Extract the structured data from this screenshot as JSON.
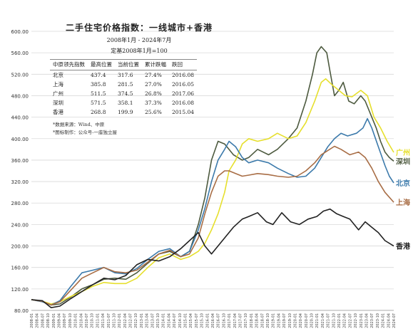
{
  "panel": {
    "title": "二手住宅价格指数：一线城市+香港",
    "period": "2008年1月 - 2024年7月",
    "base": "定基2008年1月=100",
    "headers": [
      "中原领先指数",
      "最高位置",
      "当前位置",
      "累计跌幅",
      "跌回"
    ],
    "rows": [
      [
        "北京",
        "437.4",
        "317.6",
        "27.4%",
        "2016.08"
      ],
      [
        "上海",
        "385.8",
        "281.5",
        "27.0%",
        "2016.05"
      ],
      [
        "广州",
        "511.5",
        "374.5",
        "26.8%",
        "2017.06"
      ],
      [
        "深圳",
        "571.5",
        "358.1",
        "37.3%",
        "2016.08"
      ],
      [
        "香港",
        "268.8",
        "199.9",
        "25.6%",
        "2015.04"
      ]
    ],
    "source": "*数据来源：Wind、中原",
    "credit": "*图标制作：公众号-一座独立屋"
  },
  "chart_data": {
    "type": "line",
    "ylim": [
      80,
      600
    ],
    "yticks": [
      "80.00",
      "120.00",
      "160.00",
      "200.00",
      "240.00",
      "280.00",
      "320.00",
      "360.00",
      "400.00",
      "440.00",
      "480.00",
      "520.00",
      "560.00",
      "600.00"
    ],
    "xlim": [
      2008.0,
      2024.5
    ],
    "x_tick_note": "monthly-quarterly date labels 2008-01 … 2024-07, rotated",
    "series": [
      {
        "name": "深圳",
        "color": "#4d5a3f",
        "points": [
          [
            2008.0,
            100
          ],
          [
            2008.5,
            96
          ],
          [
            2008.9,
            90
          ],
          [
            2009.3,
            92
          ],
          [
            2009.8,
            105
          ],
          [
            2010.3,
            120
          ],
          [
            2010.8,
            128
          ],
          [
            2011.3,
            138
          ],
          [
            2011.8,
            140
          ],
          [
            2012.3,
            138
          ],
          [
            2012.8,
            150
          ],
          [
            2013.3,
            168
          ],
          [
            2013.8,
            185
          ],
          [
            2014.3,
            190
          ],
          [
            2014.8,
            180
          ],
          [
            2015.2,
            190
          ],
          [
            2015.6,
            240
          ],
          [
            2015.9,
            290
          ],
          [
            2016.2,
            360
          ],
          [
            2016.5,
            395
          ],
          [
            2016.8,
            390
          ],
          [
            2017.2,
            370
          ],
          [
            2017.6,
            360
          ],
          [
            2017.9,
            365
          ],
          [
            2018.3,
            380
          ],
          [
            2018.8,
            370
          ],
          [
            2019.2,
            380
          ],
          [
            2019.7,
            400
          ],
          [
            2020.1,
            420
          ],
          [
            2020.5,
            470
          ],
          [
            2020.8,
            520
          ],
          [
            2021.0,
            560
          ],
          [
            2021.2,
            571.5
          ],
          [
            2021.45,
            560
          ],
          [
            2021.6,
            525
          ],
          [
            2021.8,
            480
          ],
          [
            2022.0,
            490
          ],
          [
            2022.2,
            505
          ],
          [
            2022.45,
            470
          ],
          [
            2022.7,
            465
          ],
          [
            2023.0,
            480
          ],
          [
            2023.2,
            470
          ],
          [
            2023.5,
            440
          ],
          [
            2023.7,
            420
          ],
          [
            2023.9,
            395
          ],
          [
            2024.1,
            375
          ],
          [
            2024.3,
            365
          ],
          [
            2024.5,
            358.1
          ]
        ]
      },
      {
        "name": "广州",
        "color": "#e6df2c",
        "points": [
          [
            2008.0,
            100
          ],
          [
            2008.5,
            97
          ],
          [
            2008.9,
            92
          ],
          [
            2009.3,
            96
          ],
          [
            2009.8,
            106
          ],
          [
            2010.3,
            115
          ],
          [
            2010.8,
            125
          ],
          [
            2011.3,
            132
          ],
          [
            2011.8,
            130
          ],
          [
            2012.3,
            130
          ],
          [
            2012.8,
            140
          ],
          [
            2013.3,
            160
          ],
          [
            2013.8,
            178
          ],
          [
            2014.3,
            185
          ],
          [
            2014.8,
            175
          ],
          [
            2015.2,
            180
          ],
          [
            2015.6,
            190
          ],
          [
            2015.9,
            205
          ],
          [
            2016.2,
            230
          ],
          [
            2016.5,
            260
          ],
          [
            2016.8,
            300
          ],
          [
            2017.0,
            340
          ],
          [
            2017.3,
            360
          ],
          [
            2017.6,
            390
          ],
          [
            2017.9,
            400
          ],
          [
            2018.3,
            395
          ],
          [
            2018.8,
            400
          ],
          [
            2019.2,
            410
          ],
          [
            2019.7,
            400
          ],
          [
            2020.1,
            405
          ],
          [
            2020.5,
            430
          ],
          [
            2020.9,
            470
          ],
          [
            2021.2,
            505
          ],
          [
            2021.4,
            511.5
          ],
          [
            2021.7,
            500
          ],
          [
            2022.0,
            490
          ],
          [
            2022.3,
            480
          ],
          [
            2022.6,
            478
          ],
          [
            2023.0,
            490
          ],
          [
            2023.3,
            480
          ],
          [
            2023.6,
            440
          ],
          [
            2023.9,
            420
          ],
          [
            2024.2,
            395
          ],
          [
            2024.5,
            374.5
          ]
        ]
      },
      {
        "name": "北京",
        "color": "#3c7aab",
        "points": [
          [
            2008.0,
            100
          ],
          [
            2008.5,
            96
          ],
          [
            2008.9,
            90
          ],
          [
            2009.3,
            98
          ],
          [
            2009.8,
            125
          ],
          [
            2010.3,
            150
          ],
          [
            2010.8,
            155
          ],
          [
            2011.3,
            160
          ],
          [
            2011.8,
            150
          ],
          [
            2012.3,
            148
          ],
          [
            2012.8,
            158
          ],
          [
            2013.3,
            175
          ],
          [
            2013.8,
            190
          ],
          [
            2014.3,
            195
          ],
          [
            2014.8,
            180
          ],
          [
            2015.2,
            190
          ],
          [
            2015.6,
            230
          ],
          [
            2015.9,
            270
          ],
          [
            2016.2,
            320
          ],
          [
            2016.5,
            360
          ],
          [
            2016.8,
            380
          ],
          [
            2017.0,
            395
          ],
          [
            2017.3,
            385
          ],
          [
            2017.6,
            365
          ],
          [
            2017.9,
            355
          ],
          [
            2018.3,
            360
          ],
          [
            2018.8,
            355
          ],
          [
            2019.2,
            345
          ],
          [
            2019.7,
            335
          ],
          [
            2020.1,
            328
          ],
          [
            2020.5,
            330
          ],
          [
            2020.9,
            345
          ],
          [
            2021.2,
            365
          ],
          [
            2021.5,
            385
          ],
          [
            2021.8,
            400
          ],
          [
            2022.1,
            410
          ],
          [
            2022.4,
            405
          ],
          [
            2022.8,
            410
          ],
          [
            2023.1,
            420
          ],
          [
            2023.3,
            437.4
          ],
          [
            2023.5,
            420
          ],
          [
            2023.8,
            385
          ],
          [
            2024.1,
            350
          ],
          [
            2024.3,
            330
          ],
          [
            2024.5,
            317.6
          ]
        ]
      },
      {
        "name": "上海",
        "color": "#a86d45",
        "points": [
          [
            2008.0,
            100
          ],
          [
            2008.5,
            97
          ],
          [
            2008.9,
            90
          ],
          [
            2009.3,
            96
          ],
          [
            2009.8,
            118
          ],
          [
            2010.3,
            140
          ],
          [
            2010.8,
            150
          ],
          [
            2011.3,
            160
          ],
          [
            2011.8,
            152
          ],
          [
            2012.3,
            150
          ],
          [
            2012.8,
            155
          ],
          [
            2013.3,
            170
          ],
          [
            2013.8,
            185
          ],
          [
            2014.3,
            192
          ],
          [
            2014.8,
            180
          ],
          [
            2015.2,
            185
          ],
          [
            2015.6,
            215
          ],
          [
            2015.9,
            260
          ],
          [
            2016.2,
            300
          ],
          [
            2016.5,
            330
          ],
          [
            2016.8,
            340
          ],
          [
            2017.0,
            340
          ],
          [
            2017.3,
            335
          ],
          [
            2017.6,
            330
          ],
          [
            2017.9,
            332
          ],
          [
            2018.3,
            335
          ],
          [
            2018.8,
            333
          ],
          [
            2019.2,
            330
          ],
          [
            2019.7,
            328
          ],
          [
            2020.1,
            330
          ],
          [
            2020.5,
            340
          ],
          [
            2020.9,
            355
          ],
          [
            2021.2,
            370
          ],
          [
            2021.5,
            378
          ],
          [
            2021.8,
            385.8
          ],
          [
            2022.1,
            380
          ],
          [
            2022.5,
            370
          ],
          [
            2022.9,
            375
          ],
          [
            2023.2,
            365
          ],
          [
            2023.5,
            345
          ],
          [
            2023.8,
            320
          ],
          [
            2024.1,
            300
          ],
          [
            2024.5,
            281.5
          ]
        ]
      },
      {
        "name": "香港",
        "color": "#222222",
        "points": [
          [
            2008.0,
            100
          ],
          [
            2008.5,
            98
          ],
          [
            2008.9,
            85
          ],
          [
            2009.3,
            88
          ],
          [
            2009.8,
            102
          ],
          [
            2010.3,
            115
          ],
          [
            2010.8,
            128
          ],
          [
            2011.3,
            140
          ],
          [
            2011.8,
            137
          ],
          [
            2012.3,
            145
          ],
          [
            2012.8,
            165
          ],
          [
            2013.3,
            175
          ],
          [
            2013.8,
            172
          ],
          [
            2014.3,
            180
          ],
          [
            2014.8,
            195
          ],
          [
            2015.2,
            210
          ],
          [
            2015.6,
            225
          ],
          [
            2015.9,
            200
          ],
          [
            2016.2,
            185
          ],
          [
            2016.5,
            200
          ],
          [
            2016.8,
            215
          ],
          [
            2017.2,
            235
          ],
          [
            2017.6,
            250
          ],
          [
            2017.9,
            255
          ],
          [
            2018.3,
            262
          ],
          [
            2018.7,
            245
          ],
          [
            2019.0,
            240
          ],
          [
            2019.4,
            262
          ],
          [
            2019.8,
            245
          ],
          [
            2020.2,
            240
          ],
          [
            2020.6,
            250
          ],
          [
            2021.0,
            255
          ],
          [
            2021.3,
            265
          ],
          [
            2021.6,
            268.8
          ],
          [
            2021.9,
            260
          ],
          [
            2022.2,
            255
          ],
          [
            2022.5,
            250
          ],
          [
            2022.9,
            230
          ],
          [
            2023.2,
            245
          ],
          [
            2023.5,
            235
          ],
          [
            2023.8,
            225
          ],
          [
            2024.1,
            210
          ],
          [
            2024.5,
            199.9
          ]
        ]
      }
    ]
  }
}
